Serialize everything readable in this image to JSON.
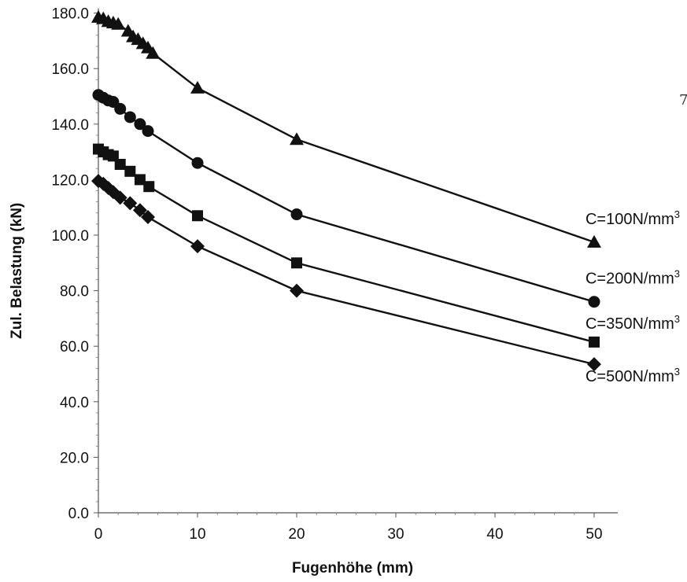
{
  "chart_data": {
    "type": "line",
    "xlabel": "Fugenhöhe  (mm)",
    "ylabel": "Zul.  Belastung  (kN)",
    "xlim": [
      0,
      50
    ],
    "ylim": [
      0,
      180
    ],
    "x_ticks": [
      0,
      10,
      20,
      30,
      40,
      50
    ],
    "x_tick_labels": [
      "0",
      "10",
      "20",
      "30",
      "40",
      "50"
    ],
    "y_ticks": [
      0,
      20,
      40,
      60,
      80,
      100,
      120,
      140,
      160,
      180
    ],
    "y_tick_labels": [
      "0.0",
      "20.0",
      "40.0",
      "60.0",
      "80.0",
      "100.0",
      "120.0",
      "140.0",
      "160.0",
      "180.0"
    ],
    "grid": false,
    "legend": "inline labels at right end of each line",
    "edge_glyph": "7",
    "series": [
      {
        "name": "C=100N/mm",
        "label_base": "C=100N/mm",
        "label_sup": "3",
        "marker": "triangle",
        "x": [
          0,
          0.5,
          1,
          1.5,
          2,
          3,
          3.5,
          4,
          4.5,
          5,
          5.5,
          10,
          20,
          50
        ],
        "y": [
          178.5,
          178,
          177,
          176.5,
          176,
          173.5,
          171.5,
          170.5,
          169,
          167.5,
          165.5,
          153,
          134.5,
          97.5
        ]
      },
      {
        "name": "C=200N/mm",
        "label_base": "C=200N/mm",
        "label_sup": "3",
        "marker": "circle",
        "x": [
          0,
          0.5,
          1,
          1.5,
          2.2,
          3.2,
          4.2,
          5,
          10,
          20,
          50
        ],
        "y": [
          150.5,
          149.5,
          148.5,
          148,
          145.5,
          142.5,
          140,
          137.5,
          126,
          107.5,
          76
        ]
      },
      {
        "name": "C=350N/mm",
        "label_base": "C=350N/mm",
        "label_sup": "3",
        "marker": "square",
        "x": [
          0,
          0.5,
          1,
          1.5,
          2.2,
          3.2,
          4.2,
          5.1,
          10,
          20,
          50
        ],
        "y": [
          131,
          130,
          129,
          128.5,
          125.5,
          123,
          120,
          117.5,
          107,
          90,
          61.5
        ]
      },
      {
        "name": "C=500N/mm",
        "label_base": "C=500N/mm",
        "label_sup": "3",
        "marker": "diamond",
        "x": [
          0,
          0.5,
          1,
          1.5,
          2.2,
          3.2,
          4.2,
          5,
          10,
          20,
          50
        ],
        "y": [
          119.5,
          118.5,
          117,
          115.5,
          113.5,
          111.5,
          109,
          106.5,
          96,
          80,
          53.5
        ]
      }
    ]
  }
}
